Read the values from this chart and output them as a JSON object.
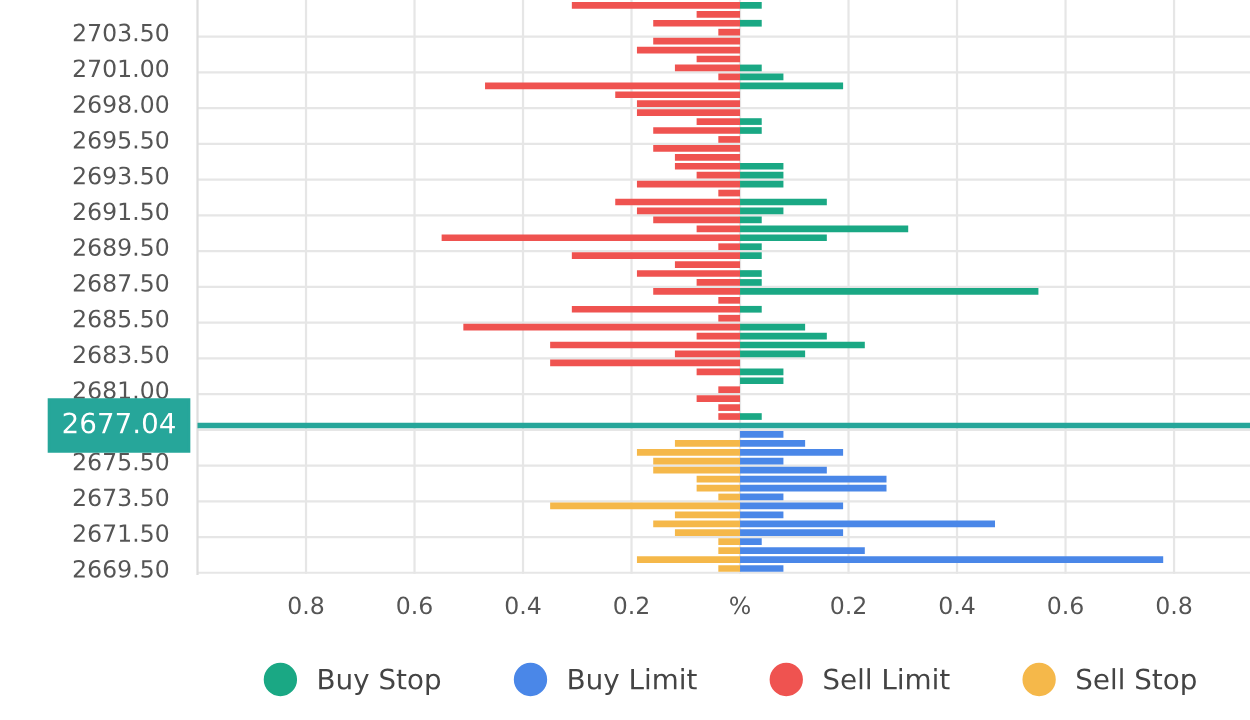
{
  "chart_data": {
    "type": "bar",
    "orientation": "horizontal",
    "categories": [
      null,
      null,
      null,
      "2703.50",
      null,
      null,
      null,
      "2701.00",
      null,
      null,
      null,
      "2698.00",
      null,
      null,
      null,
      "2695.50",
      null,
      null,
      null,
      "2693.50",
      null,
      null,
      null,
      "2691.50",
      null,
      null,
      null,
      "2689.50",
      null,
      null,
      null,
      "2687.50",
      null,
      null,
      null,
      "2685.50",
      null,
      null,
      null,
      "2683.50",
      null,
      null,
      null,
      "2681.00",
      null,
      null,
      null,
      "2677.04",
      null,
      null,
      null,
      "2675.50",
      null,
      null,
      null,
      "2673.50",
      null,
      null,
      null,
      "2671.50",
      null,
      null,
      null,
      "2669.50"
    ],
    "series": [
      {
        "name": "Buy Stop",
        "color": "#1aa884",
        "values": [
          0.04,
          null,
          0.04,
          null,
          null,
          null,
          null,
          0.04,
          0.08,
          0.19,
          null,
          null,
          null,
          0.04,
          0.04,
          null,
          null,
          null,
          0.08,
          0.08,
          0.08,
          null,
          0.16,
          0.08,
          0.04,
          0.31,
          0.16,
          0.04,
          0.04,
          null,
          0.04,
          0.04,
          0.55,
          null,
          0.04,
          null,
          0.12,
          0.16,
          0.23,
          0.12,
          null,
          0.08,
          0.08,
          null,
          null,
          null,
          0.04,
          null,
          null,
          null,
          null,
          null,
          null,
          null,
          null,
          null,
          null,
          null,
          null,
          null,
          null,
          null,
          null,
          null
        ]
      },
      {
        "name": "Buy Limit",
        "color": "#4a87e8",
        "values": [
          null,
          null,
          null,
          null,
          null,
          null,
          null,
          null,
          null,
          null,
          null,
          null,
          null,
          null,
          null,
          null,
          null,
          null,
          null,
          null,
          null,
          null,
          null,
          null,
          null,
          null,
          null,
          null,
          null,
          null,
          null,
          null,
          null,
          null,
          null,
          null,
          null,
          null,
          null,
          null,
          null,
          null,
          null,
          null,
          null,
          null,
          null,
          null,
          0.08,
          0.12,
          0.19,
          0.08,
          0.16,
          0.27,
          0.27,
          0.08,
          0.19,
          0.08,
          0.47,
          0.19,
          0.04,
          0.23,
          0.78,
          0.08
        ]
      },
      {
        "name": "Sell Limit",
        "color": "#ef5350",
        "values": [
          -0.31,
          -0.08,
          -0.16,
          -0.04,
          -0.16,
          -0.19,
          -0.08,
          -0.12,
          -0.04,
          -0.47,
          -0.23,
          -0.19,
          -0.19,
          -0.08,
          -0.16,
          -0.04,
          -0.16,
          -0.12,
          -0.12,
          -0.08,
          -0.19,
          -0.04,
          -0.23,
          -0.19,
          -0.16,
          -0.08,
          -0.55,
          -0.04,
          -0.31,
          -0.12,
          -0.19,
          -0.08,
          -0.16,
          -0.04,
          -0.31,
          -0.04,
          -0.51,
          -0.08,
          -0.35,
          -0.12,
          -0.35,
          -0.08,
          null,
          -0.04,
          -0.08,
          -0.04,
          -0.04,
          null,
          null,
          null,
          null,
          null,
          null,
          null,
          null,
          null,
          null,
          null,
          null,
          null,
          null,
          null,
          null,
          null
        ]
      },
      {
        "name": "Sell Stop",
        "color": "#f5b84a",
        "values": [
          null,
          null,
          null,
          null,
          null,
          null,
          null,
          null,
          null,
          null,
          null,
          null,
          null,
          null,
          null,
          null,
          null,
          null,
          null,
          null,
          null,
          null,
          null,
          null,
          null,
          null,
          null,
          null,
          null,
          null,
          null,
          null,
          null,
          null,
          null,
          null,
          null,
          null,
          null,
          null,
          null,
          null,
          null,
          null,
          null,
          null,
          null,
          null,
          null,
          -0.12,
          -0.19,
          -0.16,
          -0.16,
          -0.08,
          -0.08,
          -0.04,
          -0.35,
          -0.12,
          -0.16,
          -0.12,
          -0.04,
          -0.04,
          -0.19,
          -0.04
        ]
      }
    ],
    "xlim": [
      -1.0,
      0.94
    ],
    "xticks": [
      {
        "value": -0.8,
        "label": "0.8"
      },
      {
        "value": -0.6,
        "label": "0.6"
      },
      {
        "value": -0.4,
        "label": "0.4"
      },
      {
        "value": -0.2,
        "label": "0.2"
      },
      {
        "value": 0,
        "label": "%"
      },
      0.2,
      0.4,
      0.6,
      0.8
    ],
    "ref_lines": [
      {
        "axis": "y",
        "value": "2677.04",
        "label": "2677.04",
        "color": "#26a69a"
      }
    ],
    "stacked": true,
    "grid": true,
    "legend": "bottom",
    "marker": "circle"
  }
}
